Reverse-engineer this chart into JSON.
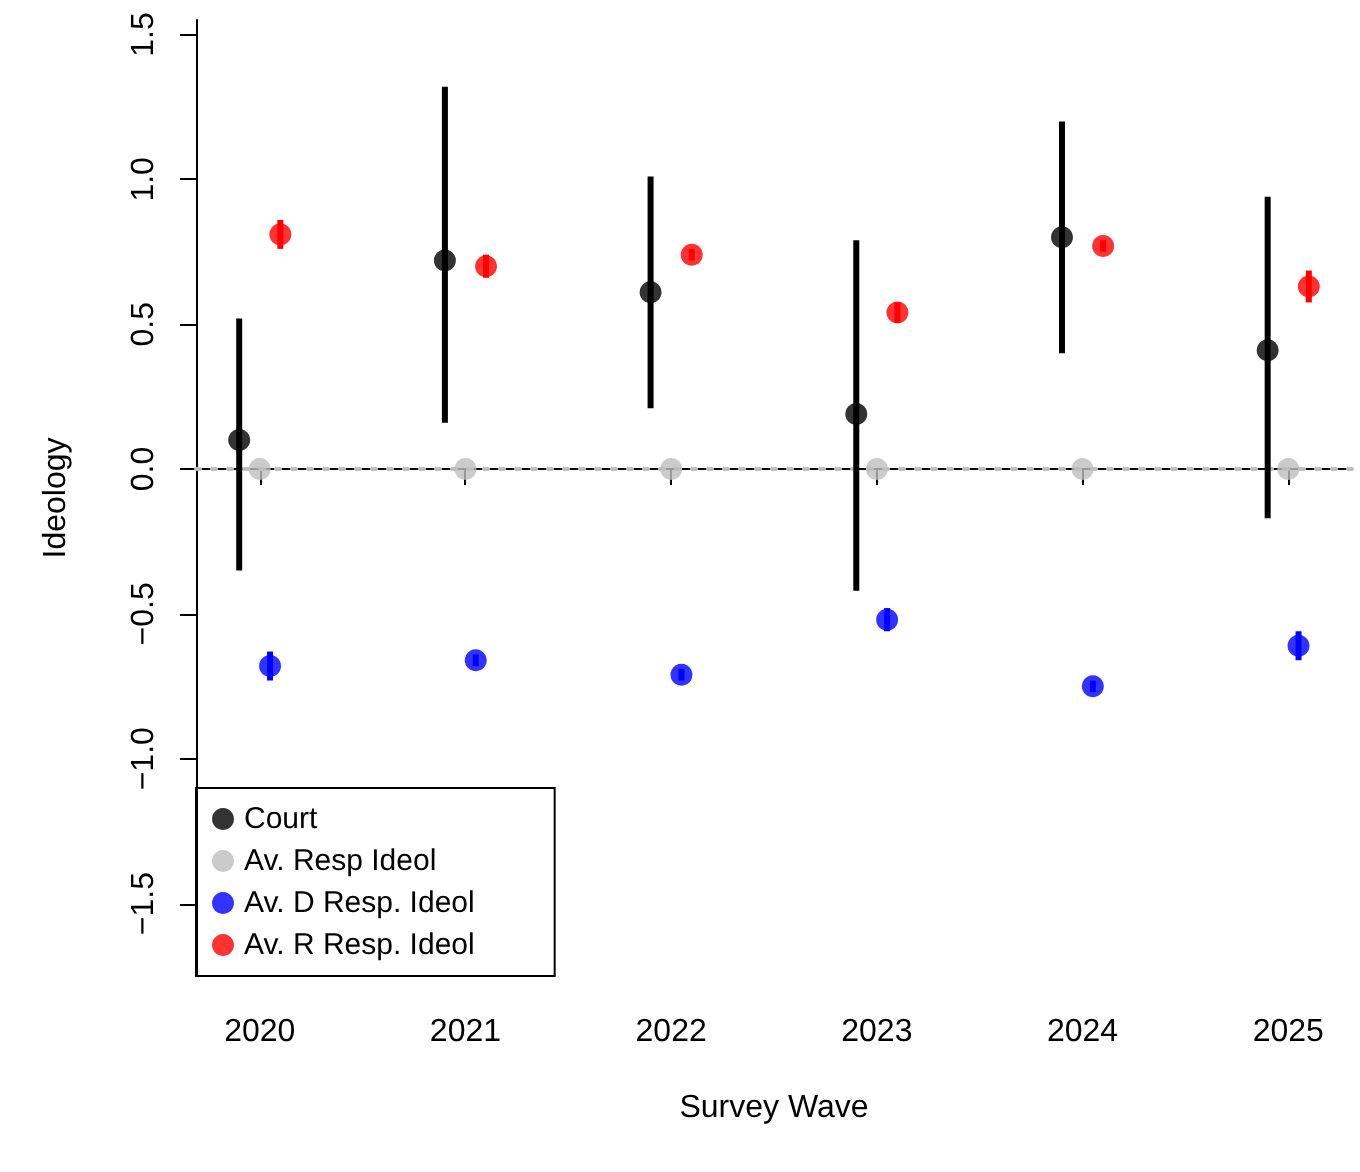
{
  "chart_data": {
    "type": "scatter",
    "xlabel": "Survey Wave",
    "ylabel": "Ideology",
    "xlim": [
      2019.69,
      2025.31
    ],
    "xticks": [
      2020,
      2021,
      2022,
      2023,
      2024,
      2025
    ],
    "ylim": [
      -1.75,
      1.55
    ],
    "yticks": [
      {
        "value": -1.5,
        "label": "−1.5"
      },
      {
        "value": -1,
        "label": "−1.0"
      },
      {
        "value": -0.5,
        "label": "−0.5"
      },
      {
        "value": 0,
        "label": "0.0"
      },
      {
        "value": 0.5,
        "label": "0.5"
      },
      {
        "value": 1,
        "label": "1.0"
      },
      {
        "value": 1.5,
        "label": "1.5"
      }
    ],
    "grid": false,
    "legend": "bottom left",
    "marker": "circle",
    "ref_lines": [
      {
        "axis": "y",
        "value": 0,
        "color": "#bebebe",
        "line_style": "dotted"
      }
    ],
    "series": [
      {
        "name": "Court",
        "color": "#000000",
        "x": [
          2019.9,
          2020.9,
          2021.9,
          2022.9,
          2023.9,
          2024.9
        ],
        "values": [
          0.1,
          0.72,
          0.61,
          0.19,
          0.8,
          0.41
        ],
        "errors": [
          [
            -0.35,
            0.52
          ],
          [
            0.16,
            1.32
          ],
          [
            0.21,
            1.01
          ],
          [
            -0.42,
            0.79
          ],
          [
            0.4,
            1.2
          ],
          [
            -0.17,
            0.94
          ]
        ]
      },
      {
        "name": "Av. Resp Ideol",
        "color": "#bebebe",
        "x": [
          2020,
          2021,
          2022,
          2023,
          2024,
          2025
        ],
        "values": [
          0,
          0,
          0,
          0,
          0,
          0
        ]
      },
      {
        "name": "Av. D Resp. Ideol",
        "color": "#0000ff",
        "x": [
          2020.05,
          2021.05,
          2022.05,
          2023.05,
          2024.05,
          2025.05
        ],
        "values": [
          -0.68,
          -0.66,
          -0.71,
          -0.52,
          -0.75,
          -0.61
        ],
        "errors": [
          0.05,
          0.02,
          0.02,
          0.04,
          0.02,
          0.05
        ]
      },
      {
        "name": "Av. R Resp. Ideol",
        "color": "#ff0000",
        "x": [
          2020.1,
          2021.1,
          2022.1,
          2023.1,
          2024.1,
          2025.1
        ],
        "values": [
          0.81,
          0.7,
          0.74,
          0.54,
          0.77,
          0.63
        ],
        "errors": [
          0.05,
          0.04,
          0.02,
          0.035,
          0.02,
          0.055
        ]
      }
    ]
  }
}
